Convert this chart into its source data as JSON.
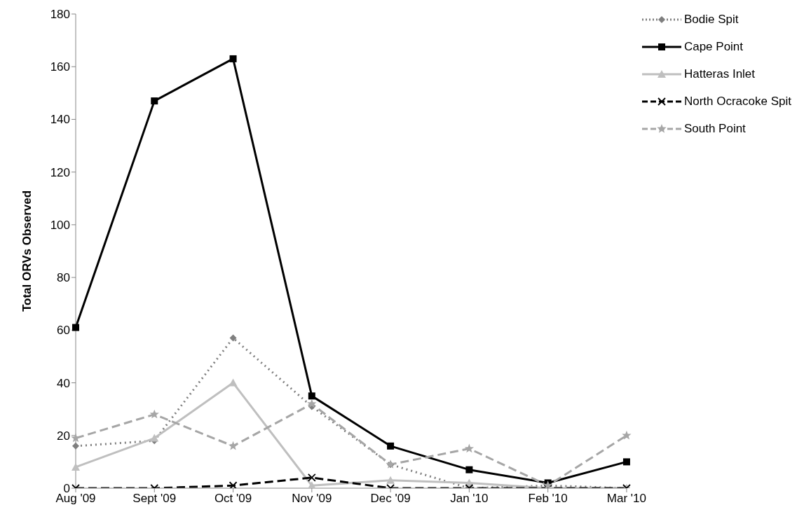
{
  "chart_data": {
    "type": "line",
    "ylabel": "Total ORVs Observed",
    "categories": [
      "Aug '09",
      "Sept '09",
      "Oct '09",
      "Nov '09",
      "Dec '09",
      "Jan '10",
      "Feb '10",
      "Mar '10"
    ],
    "series": [
      {
        "name": "Bodie Spit",
        "color": "#7f7f7f",
        "marker": "diamond",
        "line_style": "dotted",
        "values": [
          16,
          18,
          57,
          31,
          9,
          0,
          1,
          0
        ]
      },
      {
        "name": "Cape Point",
        "color": "#000000",
        "marker": "square",
        "line_style": "solid",
        "values": [
          61,
          147,
          163,
          35,
          16,
          7,
          2,
          10
        ]
      },
      {
        "name": "Hatteras Inlet",
        "color": "#bfbfbf",
        "marker": "triangle",
        "line_style": "solid",
        "values": [
          8,
          19,
          40,
          1,
          3,
          2,
          0,
          0
        ]
      },
      {
        "name": "North Ocracoke Spit",
        "color": "#000000",
        "marker": "cross",
        "line_style": "dashed",
        "values": [
          0,
          0,
          1,
          4,
          0,
          0,
          0,
          0
        ]
      },
      {
        "name": "South Point",
        "color": "#a6a6a6",
        "marker": "star",
        "line_style": "dashed",
        "values": [
          19,
          28,
          16,
          32,
          9,
          15,
          1,
          20
        ]
      }
    ],
    "ylim": [
      0,
      180
    ],
    "yticks": [
      0,
      20,
      40,
      60,
      80,
      100,
      120,
      140,
      160,
      180
    ],
    "grid": false,
    "legend": "top right"
  }
}
